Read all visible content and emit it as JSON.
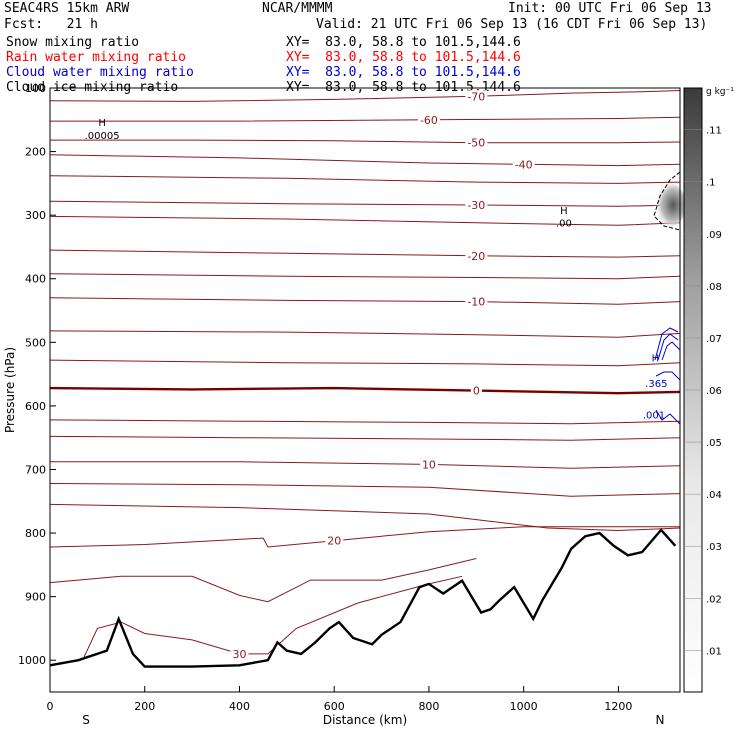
{
  "header": {
    "model": "SEAC4RS 15km ARW",
    "org": "NCAR/MMMM",
    "init": "Init: 00 UTC Fri 06 Sep 13",
    "fcst": "Fcst:   21 h",
    "valid": "Valid: 21 UTC Fri 06 Sep 13 (16 CDT Fri 06 Sep 13)"
  },
  "fields": [
    {
      "label": "Snow mixing ratio",
      "xy": "XY=  83.0, 58.8 to 101.5,144.6",
      "color": "#000000"
    },
    {
      "label": "Rain water mixing ratio",
      "xy": "XY=  83.0, 58.8 to 101.5,144.6",
      "color": "#ff0000"
    },
    {
      "label": "Cloud water mixing ratio",
      "xy": "XY=  83.0, 58.8 to 101.5,144.6",
      "color": "#0000cc"
    },
    {
      "label": "Cloud ice mixing ratio",
      "xy": "XY=  83.0, 58.8 to 101.5,144.6",
      "color": "#000000"
    }
  ],
  "chart_data": {
    "type": "cross-section",
    "xlabel": "Distance (km)",
    "ylabel": "Pressure (hPa)",
    "xlim": [
      0,
      1330
    ],
    "ylim": [
      100,
      1050
    ],
    "x_ticks": [
      0,
      200,
      400,
      600,
      800,
      1000,
      1200
    ],
    "y_ticks": [
      200,
      300,
      400,
      500,
      600,
      700,
      800,
      900,
      1000
    ],
    "y_tick_top_label": "100",
    "end_labels": {
      "left": "S",
      "right": "N"
    },
    "colorbar": {
      "unit": "g kg⁻¹",
      "ticks": [
        ".01",
        ".02",
        ".03",
        ".04",
        ".05",
        ".06",
        ".07",
        ".08",
        ".09",
        ".1",
        ".11"
      ]
    },
    "temperature_contours": [
      {
        "label": "-70",
        "points": [
          [
            0,
            120
          ],
          [
            300,
            121
          ],
          [
            600,
            118
          ],
          [
            900,
            113
          ],
          [
            1100,
            108
          ],
          [
            1250,
            106
          ],
          [
            1330,
            104
          ]
        ]
      },
      {
        "label": "-60",
        "points": [
          [
            0,
            152
          ],
          [
            400,
            152
          ],
          [
            800,
            150
          ],
          [
            1200,
            148
          ],
          [
            1330,
            146
          ]
        ]
      },
      {
        "label": "-50",
        "points": [
          [
            0,
            182
          ],
          [
            300,
            182
          ],
          [
            600,
            183
          ],
          [
            900,
            186
          ],
          [
            1200,
            186
          ],
          [
            1330,
            185
          ]
        ]
      },
      {
        "label": "-40",
        "points": [
          [
            0,
            205
          ],
          [
            400,
            210
          ],
          [
            800,
            218
          ],
          [
            1000,
            220
          ],
          [
            1200,
            222
          ],
          [
            1330,
            220
          ]
        ]
      },
      {
        "label": "",
        "points": [
          [
            0,
            238
          ],
          [
            500,
            242
          ],
          [
            900,
            248
          ],
          [
            1200,
            250
          ],
          [
            1330,
            248
          ]
        ]
      },
      {
        "label": "-30",
        "points": [
          [
            0,
            278
          ],
          [
            500,
            282
          ],
          [
            900,
            284
          ],
          [
            1200,
            286
          ],
          [
            1330,
            284
          ]
        ]
      },
      {
        "label": "",
        "points": [
          [
            0,
            302
          ],
          [
            500,
            306
          ],
          [
            900,
            312
          ],
          [
            1200,
            316
          ],
          [
            1330,
            312
          ]
        ]
      },
      {
        "label": "-20",
        "points": [
          [
            0,
            355
          ],
          [
            500,
            360
          ],
          [
            900,
            364
          ],
          [
            1200,
            366
          ],
          [
            1330,
            364
          ]
        ]
      },
      {
        "label": "",
        "points": [
          [
            0,
            392
          ],
          [
            500,
            396
          ],
          [
            900,
            398
          ],
          [
            1200,
            400
          ],
          [
            1330,
            396
          ]
        ]
      },
      {
        "label": "-10",
        "points": [
          [
            0,
            430
          ],
          [
            500,
            434
          ],
          [
            900,
            436
          ],
          [
            1200,
            440
          ],
          [
            1330,
            436
          ]
        ]
      },
      {
        "label": "",
        "points": [
          [
            0,
            482
          ],
          [
            500,
            484
          ],
          [
            900,
            488
          ],
          [
            1200,
            492
          ],
          [
            1330,
            486
          ]
        ]
      },
      {
        "label": "",
        "points": [
          [
            0,
            528
          ],
          [
            500,
            532
          ],
          [
            900,
            534
          ],
          [
            1200,
            537
          ],
          [
            1330,
            532
          ]
        ]
      },
      {
        "label": "0",
        "emph": true,
        "points": [
          [
            0,
            572
          ],
          [
            300,
            574
          ],
          [
            600,
            572
          ],
          [
            900,
            576
          ],
          [
            1200,
            580
          ],
          [
            1330,
            578
          ]
        ]
      },
      {
        "label": "",
        "points": [
          [
            0,
            622
          ],
          [
            400,
            624
          ],
          [
            800,
            626
          ],
          [
            1100,
            628
          ],
          [
            1330,
            624
          ]
        ]
      },
      {
        "label": "",
        "points": [
          [
            0,
            648
          ],
          [
            400,
            650
          ],
          [
            800,
            652
          ],
          [
            1100,
            654
          ],
          [
            1330,
            650
          ]
        ]
      },
      {
        "label": "10",
        "points": [
          [
            0,
            688
          ],
          [
            400,
            688
          ],
          [
            800,
            692
          ],
          [
            1100,
            698
          ],
          [
            1330,
            694
          ]
        ]
      },
      {
        "label": "",
        "points": [
          [
            0,
            722
          ],
          [
            400,
            724
          ],
          [
            800,
            728
          ],
          [
            1100,
            742
          ],
          [
            1330,
            738
          ]
        ]
      },
      {
        "label": "",
        "points": [
          [
            0,
            755
          ],
          [
            400,
            760
          ],
          [
            800,
            770
          ],
          [
            1050,
            792
          ],
          [
            1200,
            796
          ],
          [
            1330,
            792
          ]
        ]
      },
      {
        "label": "20",
        "points": [
          [
            0,
            822
          ],
          [
            200,
            818
          ],
          [
            450,
            808
          ],
          [
            460,
            822
          ],
          [
            600,
            812
          ],
          [
            800,
            798
          ],
          [
            1000,
            790
          ],
          [
            1330,
            790
          ]
        ]
      },
      {
        "label": "",
        "points": [
          [
            0,
            878
          ],
          [
            150,
            868
          ],
          [
            300,
            868
          ],
          [
            400,
            898
          ],
          [
            460,
            908
          ],
          [
            550,
            874
          ],
          [
            700,
            874
          ],
          [
            800,
            858
          ],
          [
            900,
            840
          ]
        ]
      },
      {
        "label": "30",
        "points": [
          [
            70,
            998
          ],
          [
            100,
            950
          ],
          [
            150,
            940
          ],
          [
            200,
            958
          ],
          [
            300,
            968
          ],
          [
            400,
            990
          ],
          [
            460,
            990
          ],
          [
            520,
            950
          ],
          [
            650,
            910
          ],
          [
            800,
            880
          ],
          [
            870,
            868
          ]
        ]
      }
    ],
    "terrain_points": [
      [
        0,
        1008
      ],
      [
        60,
        1000
      ],
      [
        120,
        985
      ],
      [
        145,
        935
      ],
      [
        175,
        990
      ],
      [
        200,
        1010
      ],
      [
        300,
        1010
      ],
      [
        400,
        1008
      ],
      [
        460,
        1000
      ],
      [
        480,
        972
      ],
      [
        500,
        985
      ],
      [
        530,
        990
      ],
      [
        560,
        972
      ],
      [
        590,
        950
      ],
      [
        610,
        940
      ],
      [
        640,
        965
      ],
      [
        680,
        975
      ],
      [
        700,
        960
      ],
      [
        740,
        940
      ],
      [
        780,
        885
      ],
      [
        800,
        880
      ],
      [
        830,
        895
      ],
      [
        850,
        885
      ],
      [
        870,
        875
      ],
      [
        890,
        900
      ],
      [
        910,
        925
      ],
      [
        930,
        920
      ],
      [
        950,
        905
      ],
      [
        980,
        885
      ],
      [
        1000,
        910
      ],
      [
        1020,
        935
      ],
      [
        1040,
        905
      ],
      [
        1060,
        880
      ],
      [
        1080,
        855
      ],
      [
        1100,
        825
      ],
      [
        1130,
        805
      ],
      [
        1160,
        800
      ],
      [
        1190,
        820
      ],
      [
        1220,
        835
      ],
      [
        1250,
        830
      ],
      [
        1290,
        795
      ],
      [
        1320,
        820
      ]
    ],
    "annotations": [
      {
        "text": "H",
        "x": 110,
        "p": 160
      },
      {
        "text": ".00005",
        "x": 110,
        "p": 180
      },
      {
        "text": "H",
        "x": 1085,
        "p": 298
      },
      {
        "text": ".00",
        "x": 1085,
        "p": 318
      },
      {
        "text": "H",
        "x": 1278,
        "p": 530,
        "color": "#0000cc"
      },
      {
        "text": ".365",
        "x": 1280,
        "p": 570,
        "color": "#0000cc"
      },
      {
        "text": ".001",
        "x": 1275,
        "p": 620,
        "color": "#0000cc"
      }
    ]
  }
}
